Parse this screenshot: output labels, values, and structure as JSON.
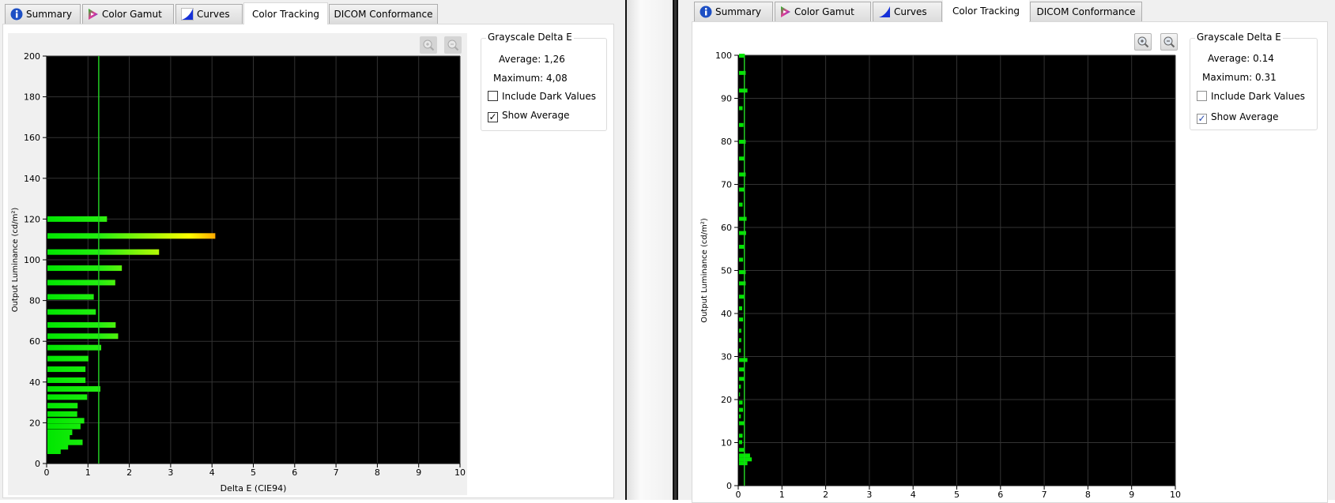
{
  "panels": [
    {
      "tabs": [
        {
          "label": "Summary",
          "icon": "info-icon"
        },
        {
          "label": "Color Gamut",
          "icon": "color-gamut-icon"
        },
        {
          "label": "Curves",
          "icon": "curves-icon"
        },
        {
          "label": "Color Tracking",
          "selected": true
        },
        {
          "label": "DICOM Conformance"
        }
      ],
      "group_title": "Grayscale Delta E",
      "average_label": "Average:",
      "average_value": "1,26",
      "maximum_label": "Maximum:",
      "maximum_value": "4,08",
      "include_dark_label": "Include Dark Values",
      "include_dark_checked": false,
      "show_average_label": "Show Average",
      "show_average_checked": true,
      "zoom_in": "zoom-in-icon",
      "zoom_out": "zoom-out-icon"
    },
    {
      "tabs": [
        {
          "label": "Summary",
          "icon": "info-icon"
        },
        {
          "label": "Color Gamut",
          "icon": "color-gamut-icon"
        },
        {
          "label": "Curves",
          "icon": "curves-icon"
        },
        {
          "label": "Color Tracking",
          "selected": true
        },
        {
          "label": "DICOM Conformance"
        }
      ],
      "group_title": "Grayscale Delta E",
      "average_label": "Average:",
      "average_value": "0.14",
      "maximum_label": "Maximum:",
      "maximum_value": "0.31",
      "include_dark_label": "Include Dark Values",
      "include_dark_checked": false,
      "show_average_label": "Show Average",
      "show_average_checked": true,
      "zoom_in": "zoom-in-icon",
      "zoom_out": "zoom-out-icon"
    }
  ],
  "chart_data": [
    {
      "type": "bar",
      "orientation": "horizontal",
      "xlabel": "Delta E (CIE94)",
      "ylabel": "Output Luminance (cd/m²)",
      "xlim": [
        0,
        10
      ],
      "ylim": [
        0,
        200
      ],
      "xticks": [
        0,
        1,
        2,
        3,
        4,
        5,
        6,
        7,
        8,
        9,
        10
      ],
      "yticks": [
        0,
        20,
        40,
        60,
        80,
        100,
        120,
        140,
        160,
        180,
        200
      ],
      "grid": true,
      "background": "#000000",
      "average": 1.26,
      "average_color": "#22cc22",
      "bars": [
        {
          "y": 120,
          "x": 1.46
        },
        {
          "y": 111.7,
          "x": 4.08
        },
        {
          "y": 103.8,
          "x": 2.72
        },
        {
          "y": 95.9,
          "x": 1.82
        },
        {
          "y": 88.8,
          "x": 1.66
        },
        {
          "y": 81.8,
          "x": 1.14
        },
        {
          "y": 74.4,
          "x": 1.19
        },
        {
          "y": 68.0,
          "x": 1.67
        },
        {
          "y": 62.5,
          "x": 1.73
        },
        {
          "y": 56.9,
          "x": 1.32
        },
        {
          "y": 51.5,
          "x": 1.01
        },
        {
          "y": 46.3,
          "x": 0.94
        },
        {
          "y": 40.9,
          "x": 0.94
        },
        {
          "y": 36.6,
          "x": 1.3
        },
        {
          "y": 32.6,
          "x": 0.98
        },
        {
          "y": 28.4,
          "x": 0.75
        },
        {
          "y": 24.3,
          "x": 0.74
        },
        {
          "y": 21.0,
          "x": 0.91
        },
        {
          "y": 18.2,
          "x": 0.82
        },
        {
          "y": 15.3,
          "x": 0.62
        },
        {
          "y": 12.7,
          "x": 0.56
        },
        {
          "y": 10.4,
          "x": 0.87
        },
        {
          "y": 8.2,
          "x": 0.52
        },
        {
          "y": 6.0,
          "x": 0.34
        }
      ]
    },
    {
      "type": "bar",
      "orientation": "horizontal",
      "xlabel": "",
      "ylabel": "Output Luminance (cd/m²)",
      "xlim": [
        0,
        10
      ],
      "ylim": [
        0,
        100
      ],
      "xticks": [
        0,
        1,
        2,
        3,
        4,
        5,
        6,
        7,
        8,
        9,
        10
      ],
      "yticks": [
        0,
        10,
        20,
        30,
        40,
        50,
        60,
        70,
        80,
        90,
        100
      ],
      "grid": true,
      "background": "#000000",
      "average": 0.14,
      "average_color": "#22cc22",
      "bars": [
        {
          "y": 99.9,
          "x": 0.15
        },
        {
          "y": 95.9,
          "x": 0.17
        },
        {
          "y": 91.8,
          "x": 0.21
        },
        {
          "y": 87.7,
          "x": 0.1
        },
        {
          "y": 83.8,
          "x": 0.12
        },
        {
          "y": 79.9,
          "x": 0.17
        },
        {
          "y": 76.0,
          "x": 0.14
        },
        {
          "y": 72.3,
          "x": 0.17
        },
        {
          "y": 68.8,
          "x": 0.14
        },
        {
          "y": 65.3,
          "x": 0.1
        },
        {
          "y": 62.0,
          "x": 0.19
        },
        {
          "y": 58.7,
          "x": 0.18
        },
        {
          "y": 55.5,
          "x": 0.15
        },
        {
          "y": 52.5,
          "x": 0.11
        },
        {
          "y": 49.6,
          "x": 0.17
        },
        {
          "y": 47.0,
          "x": 0.17
        },
        {
          "y": 43.9,
          "x": 0.14
        },
        {
          "y": 41.2,
          "x": 0.09
        },
        {
          "y": 38.6,
          "x": 0.11
        },
        {
          "y": 36.0,
          "x": 0.07
        },
        {
          "y": 33.8,
          "x": 0.07
        },
        {
          "y": 31.4,
          "x": 0.06
        },
        {
          "y": 29.2,
          "x": 0.21
        },
        {
          "y": 27.0,
          "x": 0.14
        },
        {
          "y": 24.8,
          "x": 0.14
        },
        {
          "y": 23.0,
          "x": 0.06
        },
        {
          "y": 21.2,
          "x": 0.04
        },
        {
          "y": 19.3,
          "x": 0.1
        },
        {
          "y": 17.6,
          "x": 0.11
        },
        {
          "y": 16.1,
          "x": 0.06
        },
        {
          "y": 14.5,
          "x": 0.13
        },
        {
          "y": 11.6,
          "x": 0.1
        },
        {
          "y": 10.1,
          "x": 0.09
        },
        {
          "y": 8.3,
          "x": 0.14
        },
        {
          "y": 7.0,
          "x": 0.27
        },
        {
          "y": 6.1,
          "x": 0.31
        },
        {
          "y": 5.2,
          "x": 0.21
        }
      ]
    }
  ]
}
